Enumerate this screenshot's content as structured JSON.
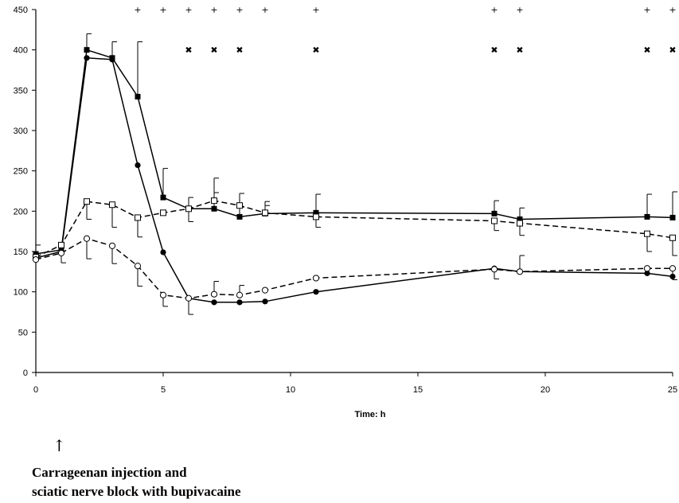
{
  "chart_data": {
    "type": "line",
    "xlabel": "Time: h",
    "ylabel": "",
    "xlim": [
      0,
      25
    ],
    "ylim": [
      0,
      450
    ],
    "xticks": [
      0,
      5,
      10,
      15,
      20,
      25
    ],
    "yticks": [
      0,
      50,
      100,
      150,
      200,
      250,
      300,
      350,
      400,
      450
    ],
    "xtick_labels": [
      "0",
      "5",
      "10",
      "15",
      "20",
      "25"
    ],
    "ytick_labels": [
      "0",
      "50",
      "100",
      "150",
      "200",
      "250",
      "300",
      "350",
      "400",
      "450"
    ],
    "grid": false,
    "series": [
      {
        "marker": "filled-square",
        "line": "solid",
        "points": [
          [
            0,
            147
          ],
          [
            1,
            152
          ],
          [
            2,
            400
          ],
          [
            3,
            390
          ],
          [
            4,
            342
          ],
          [
            5,
            217
          ],
          [
            6,
            203
          ],
          [
            7,
            203
          ],
          [
            8,
            193
          ],
          [
            9,
            197
          ],
          [
            11,
            198
          ],
          [
            18,
            197
          ],
          [
            19,
            190
          ],
          [
            24,
            193
          ],
          [
            25,
            192
          ]
        ],
        "errors": [
          [
            0,
            0
          ],
          [
            1,
            0
          ],
          [
            2,
            20
          ],
          [
            3,
            20
          ],
          [
            4,
            68
          ],
          [
            5,
            36
          ],
          [
            6,
            14
          ],
          [
            7,
            20
          ],
          [
            8,
            12
          ],
          [
            9,
            10
          ],
          [
            11,
            23
          ],
          [
            18,
            16
          ],
          [
            19,
            14
          ],
          [
            24,
            28
          ],
          [
            25,
            32
          ]
        ]
      },
      {
        "marker": "filled-circle",
        "line": "solid",
        "points": [
          [
            0,
            142
          ],
          [
            1,
            150
          ],
          [
            2,
            390
          ],
          [
            3,
            388
          ],
          [
            4,
            257
          ],
          [
            5,
            149
          ],
          [
            6,
            92
          ],
          [
            7,
            87
          ],
          [
            8,
            87
          ],
          [
            9,
            88
          ],
          [
            11,
            100
          ],
          [
            18,
            129
          ],
          [
            19,
            125
          ],
          [
            24,
            123
          ],
          [
            25,
            119
          ]
        ],
        "errors": [
          [
            0,
            0
          ],
          [
            1,
            0
          ],
          [
            2,
            0
          ],
          [
            3,
            0
          ],
          [
            4,
            0
          ],
          [
            5,
            0
          ],
          [
            6,
            0
          ],
          [
            7,
            0
          ],
          [
            8,
            0
          ],
          [
            9,
            0
          ],
          [
            11,
            0
          ],
          [
            18,
            0
          ],
          [
            19,
            0
          ],
          [
            24,
            0
          ],
          [
            25,
            0
          ]
        ]
      },
      {
        "marker": "open-square",
        "line": "dashed",
        "points": [
          [
            0,
            143
          ],
          [
            1,
            158
          ],
          [
            2,
            212
          ],
          [
            3,
            208
          ],
          [
            4,
            192
          ],
          [
            5,
            198
          ],
          [
            6,
            203
          ],
          [
            7,
            213
          ],
          [
            8,
            207
          ],
          [
            9,
            198
          ],
          [
            11,
            193
          ],
          [
            18,
            188
          ],
          [
            19,
            185
          ],
          [
            24,
            172
          ],
          [
            25,
            167
          ]
        ],
        "errors": [
          [
            0,
            0
          ],
          [
            1,
            0
          ],
          [
            2,
            -22
          ],
          [
            3,
            -28
          ],
          [
            4,
            -24
          ],
          [
            5,
            0
          ],
          [
            6,
            -16
          ],
          [
            7,
            28
          ],
          [
            8,
            15
          ],
          [
            9,
            14
          ],
          [
            11,
            -13
          ],
          [
            18,
            -12
          ],
          [
            19,
            -15
          ],
          [
            24,
            -22
          ],
          [
            25,
            -22
          ]
        ]
      },
      {
        "marker": "open-circle",
        "line": "dashed",
        "points": [
          [
            0,
            140
          ],
          [
            1,
            148
          ],
          [
            2,
            166
          ],
          [
            3,
            157
          ],
          [
            4,
            132
          ],
          [
            5,
            96
          ],
          [
            6,
            92
          ],
          [
            7,
            97
          ],
          [
            8,
            96
          ],
          [
            9,
            102
          ],
          [
            11,
            117
          ],
          [
            18,
            128
          ],
          [
            19,
            125
          ],
          [
            24,
            129
          ],
          [
            25,
            129
          ]
        ],
        "errors": [
          [
            0,
            18
          ],
          [
            1,
            -12
          ],
          [
            2,
            -25
          ],
          [
            3,
            -22
          ],
          [
            4,
            -25
          ],
          [
            5,
            -14
          ],
          [
            6,
            -20
          ],
          [
            7,
            16
          ],
          [
            8,
            12
          ],
          [
            9,
            0
          ],
          [
            11,
            0
          ],
          [
            18,
            -12
          ],
          [
            19,
            20
          ],
          [
            24,
            0
          ],
          [
            25,
            -14
          ]
        ]
      }
    ],
    "significance_markers": [
      {
        "symbol": "+",
        "y": 450,
        "x": [
          4,
          5,
          6,
          7,
          8,
          9,
          11,
          18,
          19,
          24,
          25
        ]
      },
      {
        "symbol": "✖",
        "y": 400,
        "x": [
          6,
          7,
          8,
          11,
          18,
          19,
          24,
          25
        ]
      }
    ]
  },
  "annotation": {
    "arrow": "↑",
    "line1": "Carrageenan injection and",
    "line2": "sciatic nerve block with bupivacaine"
  }
}
